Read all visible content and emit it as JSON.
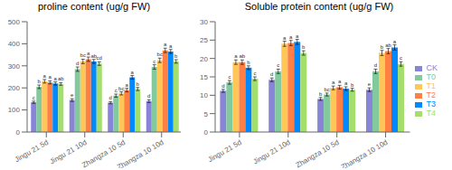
{
  "chart_data": [
    {
      "type": "bar",
      "title": "proline content (ug/g FW)",
      "categories": [
        "Jingu 21 5d",
        "Jingu 21 10d",
        "Zhangza 10 5d",
        "Zhangza 10 10d"
      ],
      "ylim": [
        0,
        500
      ],
      "yticks": [
        0,
        100,
        200,
        300,
        400,
        500
      ],
      "grid": false,
      "series": [
        {
          "name": "CK",
          "color": "#8884d8",
          "values": [
            135,
            145,
            133,
            140
          ],
          "errors": [
            5,
            6,
            5,
            6
          ],
          "annotations": [
            "c",
            "e",
            "d",
            "d"
          ]
        },
        {
          "name": "T0",
          "color": "#82ca9d",
          "values": [
            205,
            285,
            165,
            295
          ],
          "errors": [
            8,
            10,
            7,
            10
          ],
          "annotations": [
            "b",
            "d",
            "c",
            "c"
          ]
        },
        {
          "name": "T1",
          "color": "#ffc658",
          "values": [
            230,
            320,
            175,
            325
          ],
          "errors": [
            8,
            10,
            7,
            10
          ],
          "annotations": [
            "a",
            "bc",
            "bc",
            "bc"
          ]
        },
        {
          "name": "T2",
          "color": "#ff8042",
          "values": [
            225,
            330,
            190,
            370
          ],
          "errors": [
            7,
            10,
            8,
            10
          ],
          "annotations": [
            "a",
            "a",
            "a",
            "a"
          ]
        },
        {
          "name": "T3",
          "color": "#0088fe",
          "values": [
            220,
            320,
            248,
            365
          ],
          "errors": [
            7,
            9,
            8,
            9
          ],
          "annotations": [
            "a",
            "ab",
            "a",
            "a"
          ]
        },
        {
          "name": "T4",
          "color": "#a4de6c",
          "values": [
            218,
            310,
            195,
            320
          ],
          "errors": [
            6,
            8,
            7,
            8
          ],
          "annotations": [
            "ab",
            "cd",
            "b",
            "b"
          ]
        }
      ]
    },
    {
      "type": "bar",
      "title": "Soluble protein content (ug/g FW)",
      "categories": [
        "Jingu 21 5d",
        "Jingu 21 10d",
        "Zhangza 10 5d",
        "Zhangza 10 10d"
      ],
      "ylim": [
        0,
        30
      ],
      "yticks": [
        0,
        5,
        10,
        15,
        20,
        25,
        30
      ],
      "grid": false,
      "legend": "right",
      "series": [
        {
          "name": "CK",
          "color": "#8884d8",
          "values": [
            11.2,
            14.2,
            9.0,
            11.5
          ],
          "errors": [
            0.4,
            0.5,
            0.4,
            0.5
          ],
          "annotations": [
            "d",
            "d",
            "b",
            "e"
          ]
        },
        {
          "name": "T0",
          "color": "#82ca9d",
          "values": [
            13.5,
            16.5,
            10.2,
            16.5
          ],
          "errors": [
            0.5,
            0.6,
            0.4,
            0.6
          ],
          "annotations": [
            "c",
            "c",
            "bc",
            "d"
          ]
        },
        {
          "name": "T1",
          "color": "#ffc658",
          "values": [
            19.0,
            24.0,
            12.0,
            21.5
          ],
          "errors": [
            0.6,
            0.7,
            0.5,
            0.7
          ],
          "annotations": [
            "a",
            "a",
            "a",
            "b"
          ]
        },
        {
          "name": "T2",
          "color": "#ff8042",
          "values": [
            19.0,
            24.2,
            12.2,
            22.0
          ],
          "errors": [
            0.6,
            0.7,
            0.5,
            0.7
          ],
          "annotations": [
            "ab",
            "a",
            "a",
            "ab"
          ]
        },
        {
          "name": "T3",
          "color": "#0088fe",
          "values": [
            17.5,
            24.5,
            11.8,
            23.0
          ],
          "errors": [
            0.5,
            0.7,
            0.5,
            0.7
          ],
          "annotations": [
            "b",
            "a",
            "a",
            "a"
          ]
        },
        {
          "name": "T4",
          "color": "#a4de6c",
          "values": [
            14.5,
            21.5,
            11.5,
            18.5
          ],
          "errors": [
            0.5,
            0.6,
            0.4,
            0.6
          ],
          "annotations": [
            "c",
            "b",
            "b",
            "c"
          ]
        }
      ]
    }
  ]
}
